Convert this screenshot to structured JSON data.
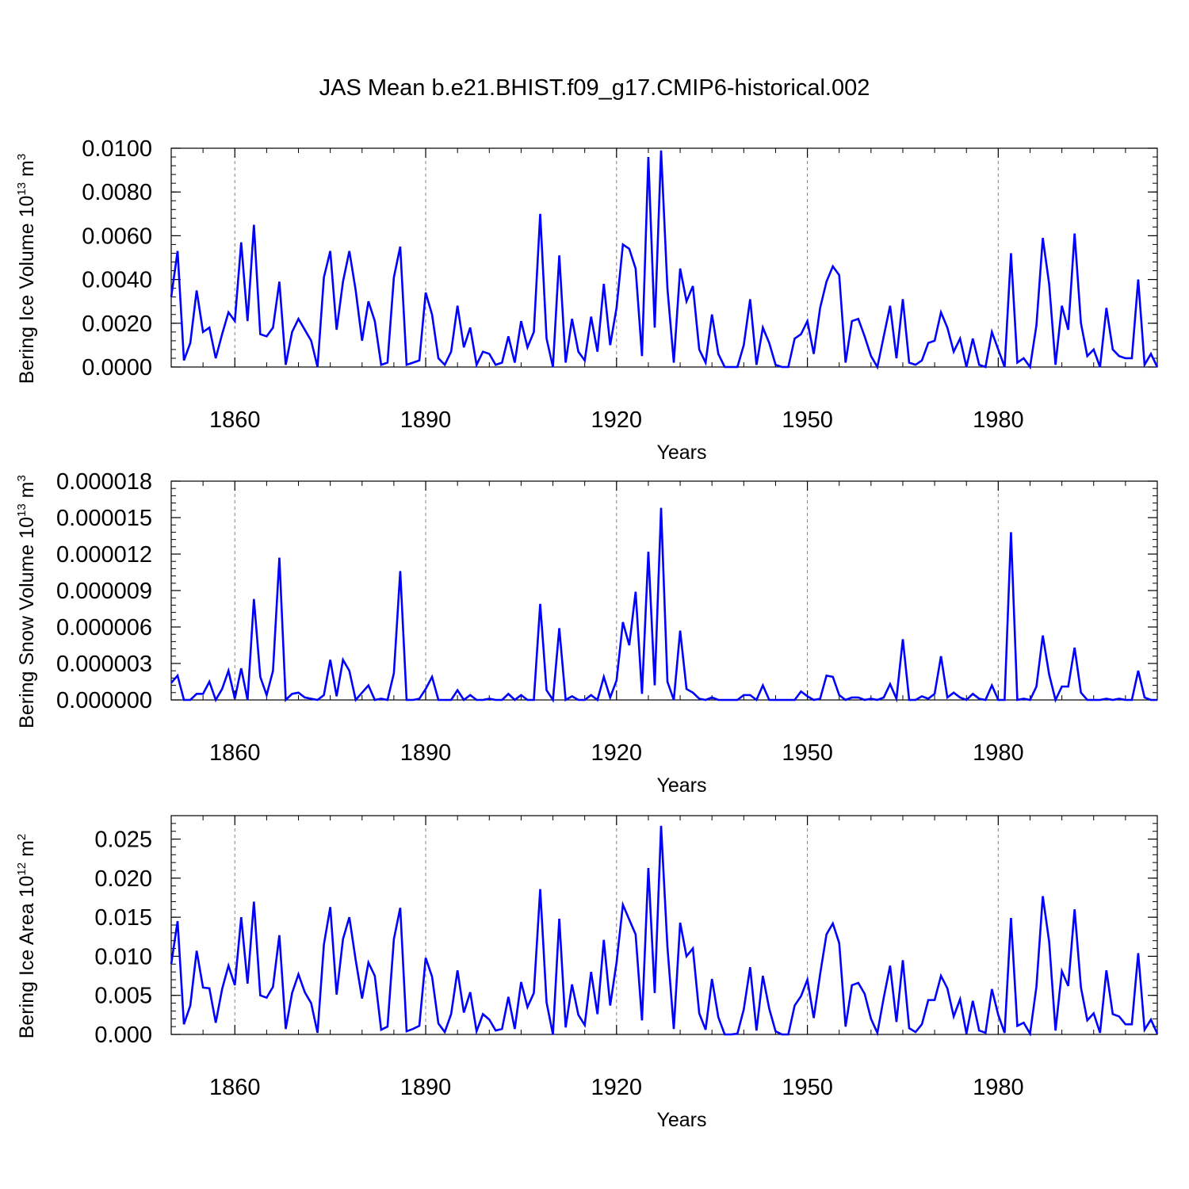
{
  "title": "JAS Mean b.e21.BHIST.f09_g17.CMIP6-historical.002",
  "colors": {
    "line": "#0000ff",
    "axis": "#000000",
    "grid": "#808080"
  },
  "chart_data": [
    {
      "type": "line",
      "ylabel": "Bering Ice Volume 10",
      "ylabel_exp": "13",
      "ylabel_unit": " m",
      "ylabel_unit_exp": "3",
      "xlabel": "Years",
      "xlim": [
        1850,
        2005
      ],
      "ylim": [
        0,
        0.01
      ],
      "xticks": [
        1860,
        1890,
        1920,
        1950,
        1980
      ],
      "xtick_labels": [
        "1860",
        "1890",
        "1920",
        "1950",
        "1980"
      ],
      "yticks": [
        0,
        0.002,
        0.004,
        0.006,
        0.008,
        0.01
      ],
      "ytick_labels": [
        "0.0000",
        "0.0020",
        "0.0040",
        "0.0060",
        "0.0080",
        "0.0100"
      ],
      "x_start": 1850,
      "series": [
        {
          "name": "Bering Ice Volume",
          "values": [
            0.0032,
            0.0053,
            0.0003,
            0.0011,
            0.0035,
            0.0016,
            0.0018,
            0.0004,
            0.0015,
            0.0025,
            0.0021,
            0.0057,
            0.0021,
            0.0065,
            0.0015,
            0.0014,
            0.0018,
            0.0039,
            0.0001,
            0.0016,
            0.0022,
            0.0017,
            0.0012,
            0.0,
            0.0041,
            0.0053,
            0.0017,
            0.0039,
            0.0053,
            0.0035,
            0.0012,
            0.003,
            0.0021,
            0.0001,
            0.0002,
            0.0041,
            0.0055,
            0.0001,
            0.0002,
            0.0003,
            0.0034,
            0.0024,
            0.0004,
            0.0001,
            0.0007,
            0.0028,
            0.0009,
            0.0018,
            0.0001,
            0.0007,
            0.0006,
            0.0001,
            0.0002,
            0.0014,
            0.0002,
            0.0021,
            0.0009,
            0.0016,
            0.007,
            0.0013,
            0.0,
            0.0051,
            0.0002,
            0.0022,
            0.0007,
            0.0003,
            0.0023,
            0.0007,
            0.0038,
            0.001,
            0.0027,
            0.0056,
            0.0054,
            0.0045,
            0.0005,
            0.0096,
            0.0018,
            0.0099,
            0.0036,
            0.0002,
            0.0045,
            0.003,
            0.0037,
            0.0008,
            0.0002,
            0.0024,
            0.0006,
            0.0,
            0.0,
            0.0,
            0.001,
            0.0031,
            0.0001,
            0.0018,
            0.0011,
            0.0001,
            0.0,
            0.0,
            0.0013,
            0.0015,
            0.0021,
            0.0006,
            0.0027,
            0.0039,
            0.0046,
            0.0042,
            0.0002,
            0.0021,
            0.0022,
            0.0014,
            0.0005,
            0.0,
            0.0014,
            0.0028,
            0.0004,
            0.0031,
            0.0002,
            0.0001,
            0.0003,
            0.0011,
            0.0012,
            0.0025,
            0.0018,
            0.0007,
            0.0013,
            0.0,
            0.0013,
            0.0001,
            0.0,
            0.0016,
            0.0008,
            0.0,
            0.0052,
            0.0002,
            0.0004,
            0.0,
            0.0019,
            0.0059,
            0.0038,
            0.0001,
            0.0028,
            0.0017,
            0.0061,
            0.002,
            0.0005,
            0.0008,
            0.0,
            0.0027,
            0.0008,
            0.0005,
            0.0004,
            0.0004,
            0.004,
            0.0001,
            0.0006,
            0.0
          ]
        }
      ]
    },
    {
      "type": "line",
      "ylabel": "Bering Snow Volume 10",
      "ylabel_exp": "13",
      "ylabel_unit": " m",
      "ylabel_unit_exp": "3",
      "xlabel": "Years",
      "xlim": [
        1850,
        2005
      ],
      "ylim": [
        0,
        1.8e-05
      ],
      "xticks": [
        1860,
        1890,
        1920,
        1950,
        1980
      ],
      "xtick_labels": [
        "1860",
        "1890",
        "1920",
        "1950",
        "1980"
      ],
      "yticks": [
        0,
        3e-06,
        6e-06,
        9e-06,
        1.2e-05,
        1.5e-05,
        1.8e-05
      ],
      "ytick_labels": [
        "0.000000",
        "0.000003",
        "0.000006",
        "0.000009",
        "0.000012",
        "0.000015",
        "0.000018"
      ],
      "x_start": 1850,
      "series": [
        {
          "name": "Bering Snow Volume",
          "values": [
            1.4e-06,
            2e-06,
            0.0,
            0.0,
            5e-07,
            5e-07,
            1.5e-06,
            0.0,
            9e-07,
            2.4e-06,
            1e-07,
            2.6e-06,
            0.0,
            8.3e-06,
            1.9e-06,
            4e-07,
            2.4e-06,
            1.17e-05,
            0.0,
            5e-07,
            6e-07,
            2e-07,
            1e-07,
            0.0,
            4e-07,
            3.3e-06,
            3e-07,
            3.3e-06,
            2.4e-06,
            0.0,
            6e-07,
            1.2e-06,
            0.0,
            1e-07,
            0.0,
            2.2e-06,
            1.06e-05,
            0.0,
            0.0,
            1e-07,
            9e-07,
            1.9e-06,
            0.0,
            0.0,
            0.0,
            8e-07,
            0.0,
            4e-07,
            0.0,
            0.0,
            1e-07,
            0.0,
            0.0,
            5e-07,
            0.0,
            4e-07,
            0.0,
            0.0,
            7.9e-06,
            8e-07,
            0.0,
            5.9e-06,
            0.0,
            3e-07,
            0.0,
            0.0,
            4e-07,
            0.0,
            1.9e-06,
            2e-07,
            1.6e-06,
            6.4e-06,
            4.5e-06,
            8.9e-06,
            5e-07,
            1.22e-05,
            1.2e-06,
            1.58e-05,
            1.5e-06,
            0.0,
            5.7e-06,
            9e-07,
            6e-07,
            1e-07,
            0.0,
            2e-07,
            0.0,
            0.0,
            0.0,
            0.0,
            4e-07,
            4e-07,
            0.0,
            1.2e-06,
            0.0,
            0.0,
            0.0,
            0.0,
            0.0,
            7e-07,
            3e-07,
            0.0,
            1e-07,
            2e-06,
            1.9e-06,
            4e-07,
            0.0,
            2e-07,
            2e-07,
            0.0,
            1e-07,
            0.0,
            2e-07,
            1.3e-06,
            1e-07,
            5e-06,
            0.0,
            0.0,
            3e-07,
            1e-07,
            5e-07,
            3.6e-06,
            2e-07,
            6e-07,
            2e-07,
            0.0,
            5e-07,
            1e-07,
            0.0,
            1.2e-06,
            0.0,
            0.0,
            1.38e-05,
            0.0,
            1e-07,
            0.0,
            1.1e-06,
            5.3e-06,
            2.1e-06,
            0.0,
            1.1e-06,
            1.1e-06,
            4.3e-06,
            6e-07,
            0.0,
            0.0,
            0.0,
            1e-07,
            0.0,
            1e-07,
            0.0,
            0.0,
            2.4e-06,
            2e-07,
            0.0,
            0.0
          ]
        }
      ]
    },
    {
      "type": "line",
      "ylabel": "Bering Ice Area 10",
      "ylabel_exp": "12",
      "ylabel_unit": " m",
      "ylabel_unit_exp": "2",
      "xlabel": "Years",
      "xlim": [
        1850,
        2005
      ],
      "ylim": [
        0,
        0.028
      ],
      "xticks": [
        1860,
        1890,
        1920,
        1950,
        1980
      ],
      "xtick_labels": [
        "1860",
        "1890",
        "1920",
        "1950",
        "1980"
      ],
      "yticks": [
        0,
        0.005,
        0.01,
        0.015,
        0.02,
        0.025
      ],
      "ytick_labels": [
        "0.000",
        "0.005",
        "0.010",
        "0.015",
        "0.020",
        "0.025"
      ],
      "x_start": 1850,
      "series": [
        {
          "name": "Bering Ice Area",
          "values": [
            0.009,
            0.0145,
            0.0013,
            0.0037,
            0.0107,
            0.006,
            0.0059,
            0.0015,
            0.0058,
            0.0088,
            0.0063,
            0.015,
            0.0065,
            0.017,
            0.005,
            0.0047,
            0.0061,
            0.0127,
            0.0007,
            0.0053,
            0.0077,
            0.0054,
            0.004,
            0.0002,
            0.0115,
            0.0163,
            0.0051,
            0.0122,
            0.015,
            0.0095,
            0.0046,
            0.0092,
            0.0075,
            0.0006,
            0.001,
            0.0122,
            0.0162,
            0.0004,
            0.0007,
            0.0011,
            0.0098,
            0.0074,
            0.0014,
            0.0003,
            0.0026,
            0.0082,
            0.0028,
            0.0054,
            0.0004,
            0.0026,
            0.0019,
            0.0005,
            0.0007,
            0.0048,
            0.0007,
            0.0067,
            0.0035,
            0.0053,
            0.0186,
            0.0041,
            0.0,
            0.0148,
            0.0009,
            0.0064,
            0.0025,
            0.0012,
            0.008,
            0.0026,
            0.0121,
            0.0037,
            0.0092,
            0.0166,
            0.0147,
            0.0128,
            0.0018,
            0.0213,
            0.0053,
            0.0267,
            0.0112,
            0.0007,
            0.0143,
            0.01,
            0.011,
            0.0027,
            0.0006,
            0.0071,
            0.0022,
            0.0,
            0.0,
            0.0001,
            0.0032,
            0.0086,
            0.0005,
            0.0075,
            0.0033,
            0.0004,
            0.0,
            0.0,
            0.0037,
            0.0049,
            0.007,
            0.0021,
            0.0077,
            0.0128,
            0.0142,
            0.0117,
            0.001,
            0.0063,
            0.0066,
            0.0052,
            0.002,
            0.0002,
            0.0047,
            0.0088,
            0.0016,
            0.0095,
            0.0008,
            0.0003,
            0.0013,
            0.0044,
            0.0044,
            0.0075,
            0.0059,
            0.0023,
            0.0045,
            0.0001,
            0.0043,
            0.0005,
            0.0002,
            0.0058,
            0.0025,
            0.0002,
            0.0149,
            0.0011,
            0.0015,
            0.0001,
            0.0061,
            0.0177,
            0.0119,
            0.0005,
            0.0081,
            0.0062,
            0.016,
            0.006,
            0.0018,
            0.0027,
            0.0002,
            0.0082,
            0.0026,
            0.0023,
            0.0013,
            0.0013,
            0.0104,
            0.0006,
            0.0019,
            0.0001
          ]
        }
      ]
    }
  ]
}
